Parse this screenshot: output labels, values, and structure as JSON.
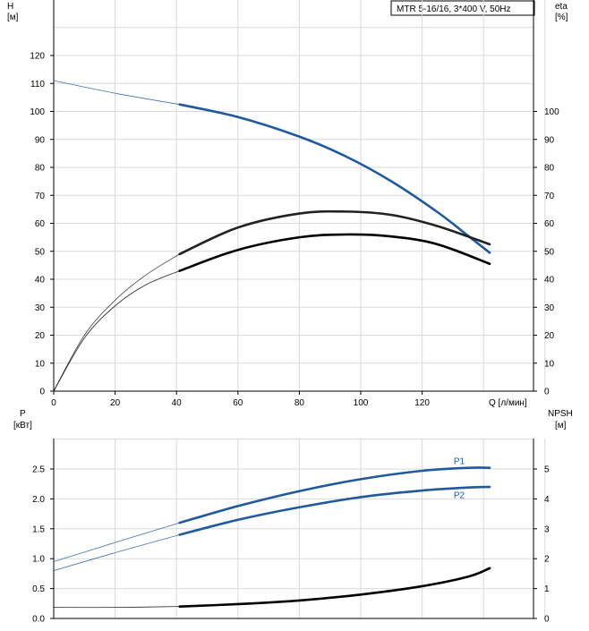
{
  "legend_title": "MTR 5-16/16, 3*400 V, 50Hz",
  "chart_data": [
    {
      "type": "line",
      "panel": "top",
      "ylabel_left": "H",
      "ylabel_left_unit": "[м]",
      "ylabel_right": "eta",
      "ylabel_right_unit": "[%]",
      "xlabel": "Q [л/мин]",
      "xlim": [
        0,
        160
      ],
      "ylim": [
        0,
        130
      ],
      "x_ticks": [
        "0",
        "20",
        "40",
        "60",
        "80",
        "100",
        "120"
      ],
      "y_ticks_left": [
        "0",
        "10",
        "20",
        "30",
        "40",
        "50",
        "60",
        "70",
        "80",
        "90",
        "100",
        "110",
        "120"
      ],
      "y_ticks_right": [
        "0",
        "10",
        "20",
        "30",
        "40",
        "50",
        "60",
        "70",
        "80",
        "90",
        "100"
      ],
      "grid": true,
      "series": [
        {
          "color": "#1f5aa0",
          "bold_from_x": 41,
          "x": [
            0,
            20,
            41,
            60,
            80,
            95,
            110,
            125,
            135,
            142
          ],
          "y": [
            111,
            106.5,
            102.5,
            98,
            91,
            84,
            75,
            64,
            55.5,
            49.5
          ]
        },
        {
          "color": "#222222",
          "bold_from_x": 41,
          "x": [
            0,
            10,
            20,
            30,
            41,
            60,
            80,
            95,
            110,
            125,
            142
          ],
          "y": [
            0,
            20,
            32.5,
            41.5,
            49,
            58.5,
            63.5,
            64.2,
            63,
            59,
            52.5
          ]
        },
        {
          "color": "#000000",
          "bold_from_x": 41,
          "x": [
            0,
            10,
            20,
            30,
            41,
            60,
            80,
            95,
            110,
            125,
            142
          ],
          "y": [
            0,
            19,
            30.5,
            38,
            43,
            50.5,
            55,
            56,
            55.3,
            52.5,
            45.5
          ]
        }
      ]
    },
    {
      "type": "line",
      "panel": "bottom",
      "ylabel_left": "P",
      "ylabel_left_unit": "[кВт]",
      "ylabel_right": "NPSH",
      "ylabel_right_unit": "[м]",
      "xlim": [
        0,
        160
      ],
      "ylim": [
        0,
        3.0
      ],
      "y_ticks_left": [
        "0.0",
        "0.5",
        "1.0",
        "1.5",
        "2.0",
        "2.5"
      ],
      "y_ticks_right": [
        "0",
        "1",
        "2",
        "3",
        "4",
        "5"
      ],
      "grid": true,
      "series": [
        {
          "name": "P1",
          "color": "#1f5aa0",
          "bold_from_x": 41,
          "x": [
            0,
            20,
            41,
            60,
            80,
            100,
            120,
            135,
            142
          ],
          "y": [
            0.95,
            1.27,
            1.6,
            1.88,
            2.13,
            2.33,
            2.47,
            2.52,
            2.52
          ]
        },
        {
          "name": "P2",
          "color": "#1f5aa0",
          "bold_from_x": 41,
          "x": [
            0,
            20,
            41,
            60,
            80,
            100,
            120,
            135,
            142
          ],
          "y": [
            0.8,
            1.1,
            1.4,
            1.65,
            1.86,
            2.03,
            2.14,
            2.19,
            2.2
          ]
        },
        {
          "color": "#000000",
          "bold_from_x": 41,
          "x": [
            0,
            20,
            41,
            60,
            80,
            100,
            120,
            135,
            142
          ],
          "y": [
            0.37,
            0.37,
            0.4,
            0.48,
            0.6,
            0.8,
            1.08,
            1.4,
            1.68
          ]
        }
      ]
    }
  ]
}
